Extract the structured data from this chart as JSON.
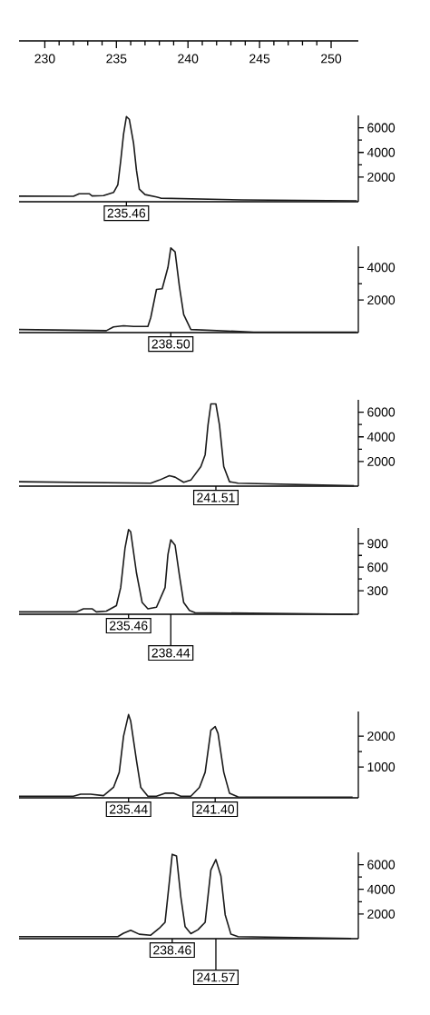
{
  "chart_data": [
    {
      "type": "line",
      "color": "#1a1a1a",
      "xlim": [
        228.2,
        251.9
      ],
      "xticks": [
        230,
        235,
        240,
        245,
        250
      ],
      "ylim": [
        0,
        7000
      ],
      "yticks": [
        2000,
        4000,
        6000
      ],
      "x": [
        228.2,
        232.0,
        232.4,
        233.1,
        233.3,
        234.1,
        234.8,
        235.1,
        235.3,
        235.5,
        235.7,
        235.9,
        236.2,
        236.4,
        236.6,
        237.0,
        237.8,
        238.1,
        243.8,
        251.8
      ],
      "values": [
        450,
        440,
        650,
        650,
        470,
        500,
        750,
        1380,
        3300,
        5480,
        6900,
        6690,
        4750,
        2570,
        1020,
        580,
        390,
        290,
        150,
        70
      ],
      "annotations": [
        "235.46"
      ]
    },
    {
      "type": "line",
      "color": "#1a1a1a",
      "xlim": [
        228.2,
        251.9
      ],
      "tick_labels": "y",
      "ylim": [
        0,
        5300
      ],
      "yticks": [
        2000,
        4000
      ],
      "x": [
        228.2,
        234.3,
        234.8,
        235.5,
        236.2,
        237.2,
        237.4,
        237.8,
        238.2,
        238.6,
        238.8,
        239.1,
        239.4,
        239.7,
        240.2,
        244.6,
        251.8
      ],
      "values": [
        190,
        120,
        350,
        420,
        380,
        380,
        920,
        2650,
        2690,
        4000,
        5200,
        4960,
        2840,
        1110,
        190,
        30,
        20
      ],
      "annotations": [
        "238.50"
      ]
    },
    {
      "type": "line",
      "color": "#1a1a1a",
      "xlim": [
        228.2,
        251.9
      ],
      "tick_labels": "y",
      "ylim": [
        0,
        7000
      ],
      "yticks": [
        2000,
        4000,
        6000
      ],
      "x": [
        228.2,
        237.4,
        238.0,
        238.7,
        239.1,
        239.7,
        240.2,
        240.9,
        241.2,
        241.4,
        241.6,
        241.95,
        242.2,
        242.5,
        242.9,
        243.5,
        251.6
      ],
      "values": [
        360,
        240,
        490,
        850,
        730,
        310,
        490,
        1580,
        2550,
        4970,
        6670,
        6670,
        4970,
        1580,
        360,
        240,
        30
      ],
      "annotations": [
        "241.51"
      ]
    },
    {
      "type": "line",
      "color": "#1a1a1a",
      "xlim": [
        228.2,
        251.9
      ],
      "tick_labels": "y",
      "ylim": [
        0,
        1100
      ],
      "yticks": [
        300,
        600,
        900
      ],
      "x": [
        228.2,
        232.2,
        232.7,
        233.3,
        233.6,
        234.3,
        235.0,
        235.3,
        235.6,
        235.85,
        236.0,
        236.4,
        236.8,
        237.2,
        237.8,
        238.4,
        238.6,
        238.8,
        239.1,
        239.4,
        239.7,
        240.1,
        240.5,
        251.5
      ],
      "values": [
        30,
        30,
        70,
        70,
        30,
        40,
        110,
        340,
        840,
        1080,
        1050,
        530,
        150,
        70,
        90,
        340,
        760,
        950,
        880,
        500,
        150,
        50,
        20,
        0
      ],
      "annotations": [
        "235.46",
        "238.44"
      ]
    },
    {
      "type": "line",
      "color": "#1a1a1a",
      "xlim": [
        228.2,
        251.9
      ],
      "tick_labels": "y",
      "ylim": [
        0,
        2800
      ],
      "yticks": [
        1000,
        2000
      ],
      "x": [
        228.2,
        232.0,
        232.5,
        233.2,
        234.1,
        234.8,
        235.2,
        235.5,
        235.85,
        236.0,
        236.4,
        236.7,
        237.2,
        237.8,
        238.4,
        239.0,
        239.5,
        240.2,
        240.8,
        241.2,
        241.6,
        241.9,
        242.1,
        242.5,
        242.9,
        243.5,
        251.5
      ],
      "values": [
        50,
        50,
        120,
        120,
        70,
        340,
        830,
        2000,
        2700,
        2490,
        1220,
        340,
        50,
        50,
        150,
        150,
        50,
        50,
        340,
        830,
        2190,
        2310,
        2090,
        830,
        150,
        30,
        20
      ],
      "annotations": [
        "235.44",
        "241.40"
      ]
    },
    {
      "type": "line",
      "color": "#1a1a1a",
      "xlim": [
        228.2,
        251.9
      ],
      "tick_labels": "y",
      "ylim": [
        0,
        7000
      ],
      "yticks": [
        2000,
        4000,
        6000
      ],
      "x": [
        228.2,
        235.1,
        235.5,
        236.0,
        236.6,
        237.4,
        238.0,
        238.4,
        238.7,
        238.9,
        239.2,
        239.5,
        239.8,
        240.2,
        240.7,
        241.2,
        241.6,
        241.95,
        242.3,
        242.6,
        243.0,
        243.5,
        251.4
      ],
      "values": [
        170,
        170,
        440,
        680,
        360,
        280,
        850,
        1330,
        4610,
        6840,
        6700,
        3390,
        970,
        410,
        730,
        1330,
        5570,
        6420,
        5090,
        1940,
        360,
        170,
        20
      ],
      "annotations": [
        "238.46",
        "241.57"
      ]
    }
  ]
}
